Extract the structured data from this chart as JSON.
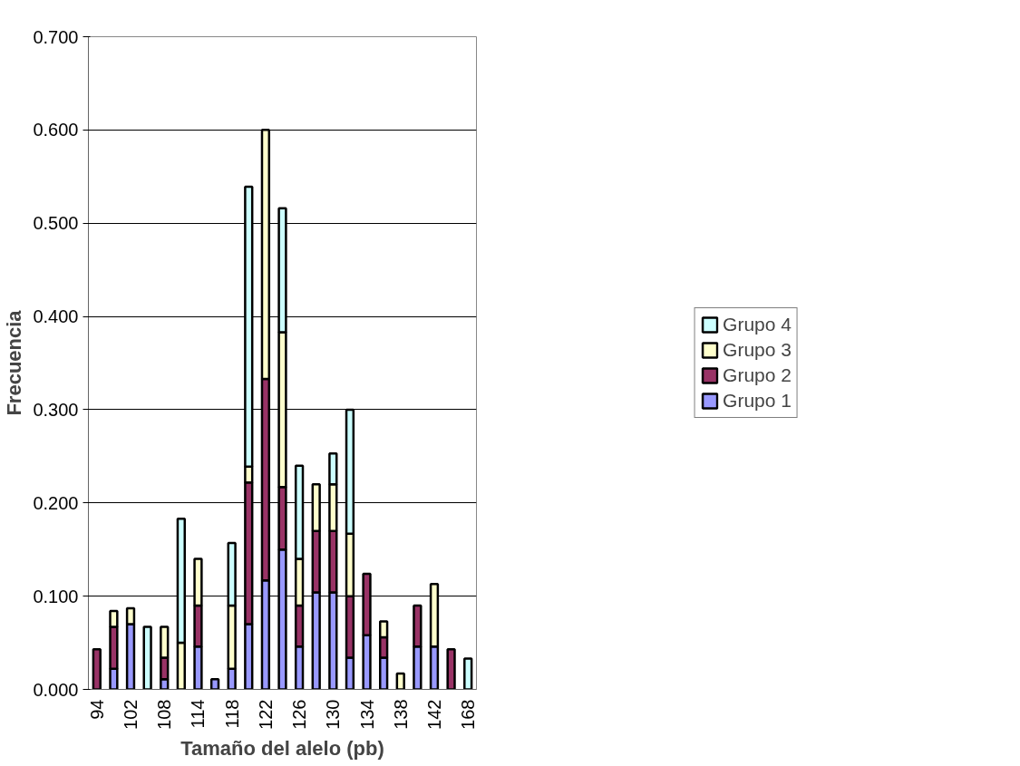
{
  "chart_data": {
    "type": "bar",
    "stacked": true,
    "xlabel": "Tamaño del alelo (pb)",
    "ylabel": "Frecuencia",
    "categories": [
      "94",
      null,
      "102",
      null,
      "108",
      null,
      "114",
      null,
      "118",
      null,
      "122",
      null,
      "126",
      null,
      "130",
      null,
      "134",
      null,
      "138",
      null,
      "142",
      null,
      "168"
    ],
    "series": [
      {
        "name": "Grupo 1",
        "color": "#9999ff",
        "values": [
          null,
          0.022,
          0.07,
          null,
          0.011,
          null,
          0.046,
          0.011,
          0.022,
          0.07,
          0.117,
          0.15,
          0.046,
          0.104,
          0.104,
          0.034,
          0.058,
          0.034,
          null,
          0.046,
          0.046,
          null,
          null
        ]
      },
      {
        "name": "Grupo 2",
        "color": "#993366",
        "values": [
          0.043,
          0.045,
          null,
          null,
          0.023,
          null,
          0.044,
          null,
          null,
          0.152,
          0.216,
          0.067,
          0.044,
          0.066,
          0.066,
          0.066,
          0.066,
          0.022,
          null,
          0.044,
          null,
          0.043,
          null
        ]
      },
      {
        "name": "Grupo 3",
        "color": "#ffffcc",
        "values": [
          null,
          0.017,
          0.017,
          null,
          0.033,
          0.05,
          0.05,
          null,
          0.068,
          0.017,
          0.267,
          0.166,
          0.05,
          0.05,
          0.05,
          0.067,
          null,
          0.017,
          0.017,
          null,
          0.067,
          null,
          null
        ]
      },
      {
        "name": "Grupo 4",
        "color": "#ccffff",
        "values": [
          null,
          null,
          null,
          0.067,
          null,
          0.133,
          null,
          null,
          0.067,
          0.3,
          null,
          0.133,
          0.1,
          null,
          0.033,
          0.133,
          null,
          null,
          null,
          null,
          null,
          null,
          0.033
        ]
      }
    ],
    "ylim": [
      0,
      0.7
    ],
    "yticks": [
      {
        "value": 0,
        "label": "0.000"
      },
      {
        "value": 0.1,
        "label": "0.100"
      },
      {
        "value": 0.2,
        "label": "0.200"
      },
      {
        "value": 0.3,
        "label": "0.300"
      },
      {
        "value": 0.4,
        "label": "0.400"
      },
      {
        "value": 0.5,
        "label": "0.500"
      },
      {
        "value": 0.6,
        "label": "0.600"
      },
      {
        "value": 0.7,
        "label": "0.700"
      }
    ],
    "grid": "y",
    "legend": "right"
  }
}
